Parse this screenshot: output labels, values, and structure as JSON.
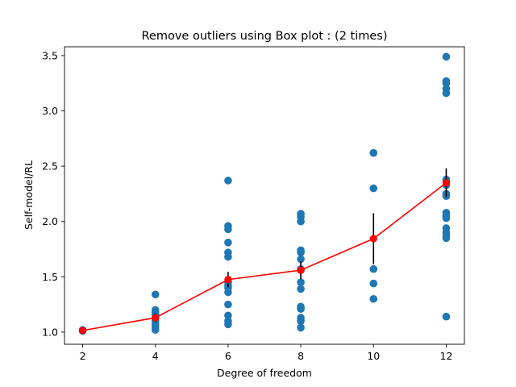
{
  "chart_data": {
    "type": "scatter",
    "title": "Remove outliers using Box plot : (2 times)",
    "xlabel": "Degree of freedom",
    "ylabel": "Self-model/RL",
    "xlim": [
      1.5,
      12.5
    ],
    "ylim": [
      0.89,
      3.58
    ],
    "xticks": [
      2,
      4,
      6,
      8,
      10,
      12
    ],
    "yticks": [
      1.0,
      1.5,
      2.0,
      2.5,
      3.0,
      3.5
    ],
    "ytick_labels": [
      "1.0",
      "1.5",
      "2.0",
      "2.5",
      "3.0",
      "3.5"
    ],
    "grid": false,
    "colors": {
      "scatter": "#1f77b4",
      "mean_line": "#ff0000",
      "error_bar": "#000000"
    },
    "series": [
      {
        "kind": "scatter",
        "points": [
          [
            2,
            1.02
          ],
          [
            2,
            1.01
          ],
          [
            4,
            1.34
          ],
          [
            4,
            1.2
          ],
          [
            4,
            1.18
          ],
          [
            4,
            1.16
          ],
          [
            4,
            1.13
          ],
          [
            4,
            1.1
          ],
          [
            4,
            1.07
          ],
          [
            4,
            1.05
          ],
          [
            4,
            1.02
          ],
          [
            6,
            2.37
          ],
          [
            6,
            1.96
          ],
          [
            6,
            1.93
          ],
          [
            6,
            1.81
          ],
          [
            6,
            1.72
          ],
          [
            6,
            1.68
          ],
          [
            6,
            1.45
          ],
          [
            6,
            1.42
          ],
          [
            6,
            1.4
          ],
          [
            6,
            1.36
          ],
          [
            6,
            1.25
          ],
          [
            6,
            1.15
          ],
          [
            6,
            1.1
          ],
          [
            6,
            1.07
          ],
          [
            8,
            2.07
          ],
          [
            8,
            2.04
          ],
          [
            8,
            2.0
          ],
          [
            8,
            1.74
          ],
          [
            8,
            1.72
          ],
          [
            8,
            1.66
          ],
          [
            8,
            1.57
          ],
          [
            8,
            1.56
          ],
          [
            8,
            1.45
          ],
          [
            8,
            1.39
          ],
          [
            8,
            1.23
          ],
          [
            8,
            1.21
          ],
          [
            8,
            1.13
          ],
          [
            8,
            1.1
          ],
          [
            8,
            1.04
          ],
          [
            10,
            2.62
          ],
          [
            10,
            2.3
          ],
          [
            10,
            1.57
          ],
          [
            10,
            1.44
          ],
          [
            10,
            1.3
          ],
          [
            12,
            3.49
          ],
          [
            12,
            3.27
          ],
          [
            12,
            3.25
          ],
          [
            12,
            3.2
          ],
          [
            12,
            3.16
          ],
          [
            12,
            2.38
          ],
          [
            12,
            2.36
          ],
          [
            12,
            2.33
          ],
          [
            12,
            2.25
          ],
          [
            12,
            2.23
          ],
          [
            12,
            2.08
          ],
          [
            12,
            2.05
          ],
          [
            12,
            2.03
          ],
          [
            12,
            1.94
          ],
          [
            12,
            1.9
          ],
          [
            12,
            1.87
          ],
          [
            12,
            1.85
          ],
          [
            12,
            1.14
          ]
        ]
      },
      {
        "kind": "mean_with_error",
        "x": [
          2,
          4,
          6,
          8,
          10,
          12
        ],
        "y": [
          1.015,
          1.13,
          1.475,
          1.56,
          1.845,
          2.35
        ],
        "err": [
          0.0,
          0.04,
          0.07,
          0.08,
          0.23,
          0.13
        ]
      }
    ]
  }
}
